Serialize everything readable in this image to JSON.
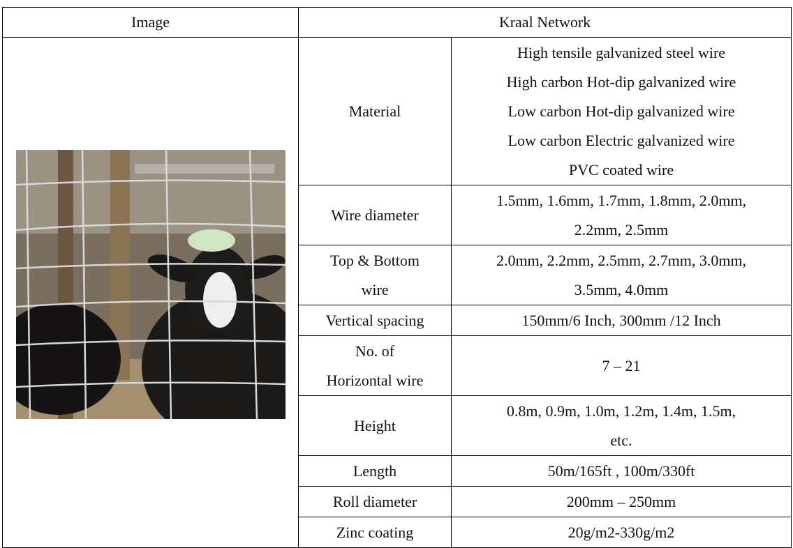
{
  "header": {
    "cells": [
      "Image",
      "Kraal Network"
    ]
  },
  "rows": [
    {
      "label": [
        "Material"
      ],
      "value": [
        "High tensile galvanized steel wire",
        "High carbon Hot-dip galvanized wire",
        "Low carbon Hot-dip galvanized wire",
        "Low carbon Electric galvanized wire",
        "PVC coated wire"
      ]
    },
    {
      "label": [
        "Wire diameter"
      ],
      "value": [
        "1.5mm, 1.6mm, 1.7mm, 1.8mm, 2.0mm,",
        "2.2mm, 2.5mm"
      ]
    },
    {
      "label": [
        "Top & Bottom",
        "wire"
      ],
      "value": [
        "2.0mm, 2.2mm, 2.5mm, 2.7mm, 3.0mm,",
        "3.5mm, 4.0mm"
      ]
    },
    {
      "label": [
        "Vertical spacing"
      ],
      "value": [
        "150mm/6 Inch, 300mm /12 Inch"
      ]
    },
    {
      "label": [
        "No. of",
        "Horizontal wire"
      ],
      "value": [
        "7 – 21"
      ]
    },
    {
      "label": [
        "Height"
      ],
      "value": [
        "0.8m, 0.9m, 1.0m, 1.2m, 1.4m, 1.5m,",
        "etc."
      ]
    },
    {
      "label": [
        "Length"
      ],
      "value": [
        "50m/165ft , 100m/330ft"
      ]
    },
    {
      "label": [
        "Roll diameter"
      ],
      "value": [
        "200mm – 250mm"
      ]
    },
    {
      "label": [
        "Zinc coating"
      ],
      "value": [
        "20g/m2-330g/m2"
      ]
    }
  ]
}
